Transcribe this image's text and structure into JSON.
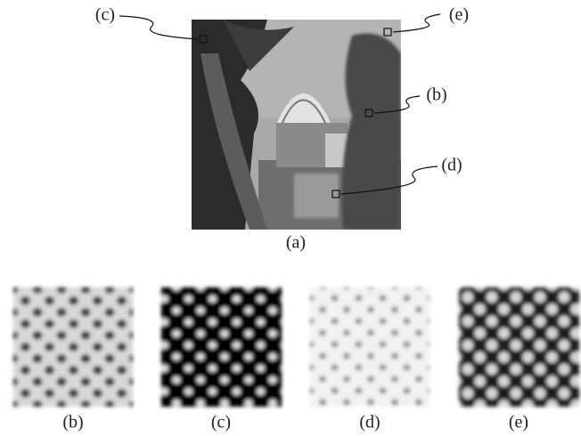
{
  "figure": {
    "main_image": {
      "label": "(a)"
    },
    "callouts": [
      {
        "label": "(c)"
      },
      {
        "label": "(e)"
      },
      {
        "label": "(b)"
      },
      {
        "label": "(d)"
      }
    ],
    "patches": [
      {
        "label": "(b)"
      },
      {
        "label": "(c)"
      },
      {
        "label": "(d)"
      },
      {
        "label": "(e)"
      }
    ]
  }
}
